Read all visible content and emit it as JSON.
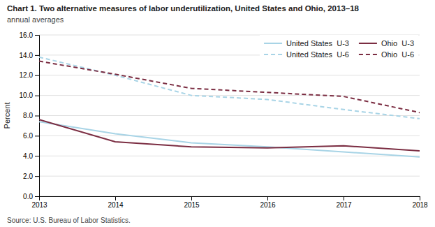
{
  "chart_data": {
    "type": "line",
    "title": "Chart 1. Two alternative measures of labor underutilization, United States and Ohio, 2013–18",
    "subtitle": "annual averages",
    "ylabel": "Percent",
    "annotations": [
      "Source: U.S. Bureau of Labor Statistics."
    ],
    "x": [
      2013,
      2014,
      2015,
      2016,
      2017,
      2018
    ],
    "series": [
      {
        "name": "United States  U-3",
        "color": "#A8D4E6",
        "line_style": "solid",
        "values": [
          7.4,
          6.2,
          5.3,
          4.9,
          4.4,
          3.9
        ]
      },
      {
        "name": "United States  U-6",
        "color": "#A8D4E6",
        "line_style": "dashed",
        "values": [
          13.8,
          12.0,
          10.0,
          9.6,
          8.6,
          7.7
        ]
      },
      {
        "name": "Ohio  U-3",
        "color": "#7B2D42",
        "line_style": "solid",
        "values": [
          7.6,
          5.4,
          4.9,
          4.8,
          5.0,
          4.5
        ]
      },
      {
        "name": "Ohio  U-6",
        "color": "#7B2D42",
        "line_style": "dashed",
        "values": [
          13.4,
          12.1,
          10.7,
          10.3,
          9.9,
          8.3
        ]
      }
    ],
    "xlim": [
      2013,
      2018
    ],
    "xticks": [
      2013,
      2014,
      2015,
      2016,
      2017,
      2018
    ],
    "ylim": [
      0.0,
      16.0
    ],
    "yticks": [
      {
        "value": 0.0,
        "label": "0.0"
      },
      {
        "value": 2.0,
        "label": "2.0"
      },
      {
        "value": 4.0,
        "label": "4.0"
      },
      {
        "value": 6.0,
        "label": "6.0"
      },
      {
        "value": 8.0,
        "label": "8.0"
      },
      {
        "value": 10.0,
        "label": "10.0"
      },
      {
        "value": 12.0,
        "label": "12.0"
      },
      {
        "value": 14.0,
        "label": "14.0"
      },
      {
        "value": 16.0,
        "label": "16.0"
      }
    ],
    "grid": true,
    "legend": "upper right"
  }
}
